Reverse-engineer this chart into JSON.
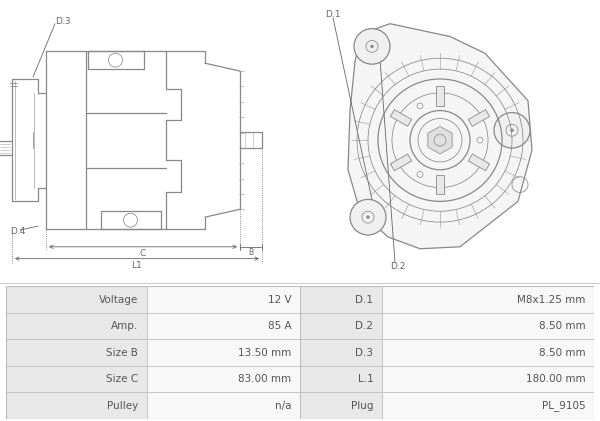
{
  "bg_color": "#ffffff",
  "table_border_color": "#bbbbbb",
  "table_row_bg_label": "#e8e8e8",
  "table_row_bg_value": "#f8f8f8",
  "table_text_color": "#555555",
  "table_data": [
    [
      "Voltage",
      "12 V",
      "D.1",
      "M8x1.25 mm"
    ],
    [
      "Amp.",
      "85 A",
      "D.2",
      "8.50 mm"
    ],
    [
      "Size B",
      "13.50 mm",
      "D.3",
      "8.50 mm"
    ],
    [
      "Size C",
      "83.00 mm",
      "L.1",
      "180.00 mm"
    ],
    [
      "Pulley",
      "n/a",
      "Plug",
      "PL_9105"
    ]
  ],
  "font_size_table": 7.5,
  "line_color": "#888888",
  "label_color": "#666666"
}
